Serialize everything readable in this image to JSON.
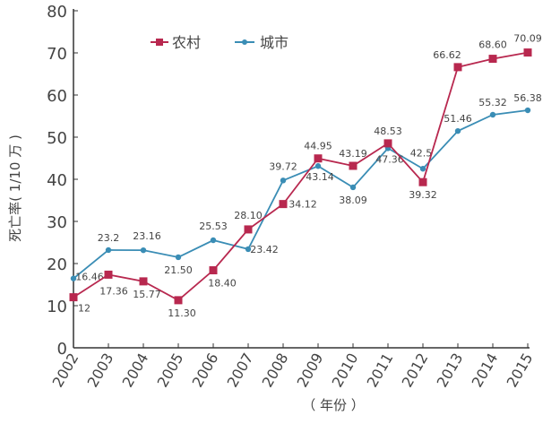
{
  "chart_data": {
    "type": "line",
    "title": "",
    "xlabel": "（ 年份 ）",
    "ylabel": "死亡率( 1/10 万 )",
    "categories": [
      "2002",
      "2003",
      "2004",
      "2005",
      "2006",
      "2007",
      "2008",
      "2009",
      "2010",
      "2011",
      "2012",
      "2013",
      "2014",
      "2015"
    ],
    "ylim": [
      0,
      80
    ],
    "yticks": [
      "0",
      "10",
      "20",
      "30",
      "40",
      "50",
      "60",
      "70",
      "80"
    ],
    "grid": false,
    "legend_placement": "top-left",
    "series": [
      {
        "name": "农村",
        "color": "#b8284f",
        "marker": "square",
        "values": [
          12,
          17.36,
          15.77,
          11.3,
          18.4,
          28.1,
          34.12,
          44.95,
          43.19,
          48.53,
          39.32,
          66.62,
          68.6,
          70.09
        ],
        "labels": [
          "12",
          "17.36",
          "15.77",
          "11.30",
          "18.40",
          "28.10",
          "34.12",
          "44.95",
          "43.19",
          "48.53",
          "39.32",
          "66.62",
          "68.60",
          "70.09"
        ]
      },
      {
        "name": "城市",
        "color": "#3a8db5",
        "marker": "diamond",
        "values": [
          16.46,
          23.2,
          23.16,
          21.5,
          25.53,
          23.42,
          39.72,
          43.14,
          38.09,
          47.36,
          42.5,
          51.46,
          55.32,
          56.38
        ],
        "labels": [
          "16.46",
          "23.2",
          "23.16",
          "21.50",
          "25.53",
          "23.42",
          "39.72",
          "43.14",
          "38.09",
          "47.36",
          "42.5",
          "51.46",
          "55.32",
          "56.38"
        ]
      }
    ]
  }
}
